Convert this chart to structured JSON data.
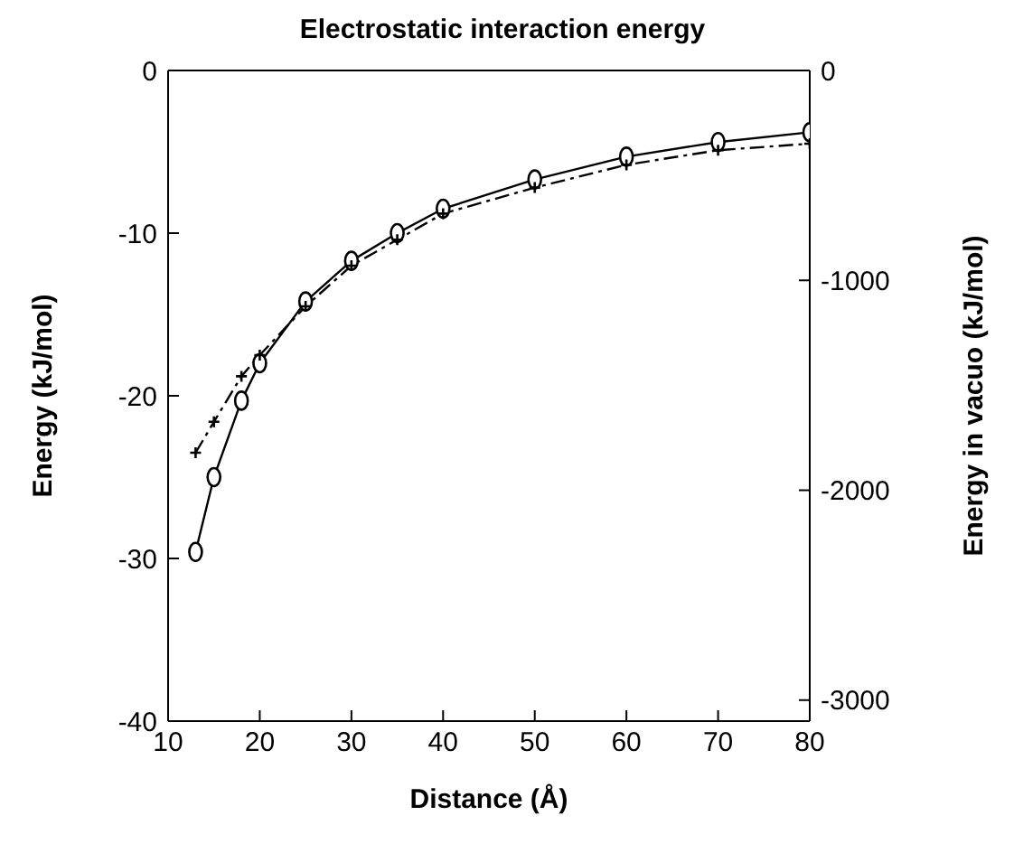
{
  "chart_data": {
    "type": "line",
    "title": "Electrostatic interaction energy",
    "xlabel": "Distance (Å)",
    "ylabel": "Energy (kJ/mol)",
    "y2label": "Energy in vacuo (kJ/mol)",
    "xlim": [
      10,
      80
    ],
    "xticks": [
      10,
      20,
      30,
      40,
      50,
      60,
      70,
      80
    ],
    "ylim": [
      -40,
      0
    ],
    "yticks": [
      -40,
      -30,
      -20,
      -10,
      0
    ],
    "y2lim": [
      -3100,
      0
    ],
    "y2ticks": [
      -3000,
      -2000,
      -1000,
      0
    ],
    "grid": false,
    "legend": false,
    "series": [
      {
        "color": "#000000",
        "marker": "circle",
        "line_style": "solid",
        "x": [
          13,
          15,
          18,
          20,
          25,
          30,
          35,
          40,
          50,
          60,
          70,
          80
        ],
        "values": [
          -29.6,
          -25.0,
          -20.3,
          -18.0,
          -14.2,
          -11.7,
          -10.0,
          -8.5,
          -6.7,
          -5.3,
          -4.4,
          -3.8
        ]
      },
      {
        "color": "#000000",
        "marker": "cross",
        "line_style": "dashed",
        "x": [
          13,
          15,
          18,
          20,
          25,
          30,
          35,
          40,
          50,
          60,
          70,
          80
        ],
        "values": [
          -23.5,
          -21.6,
          -18.8,
          -17.5,
          -14.5,
          -12.0,
          -10.4,
          -8.8,
          -7.2,
          -5.8,
          -4.9,
          -4.5
        ]
      }
    ]
  }
}
